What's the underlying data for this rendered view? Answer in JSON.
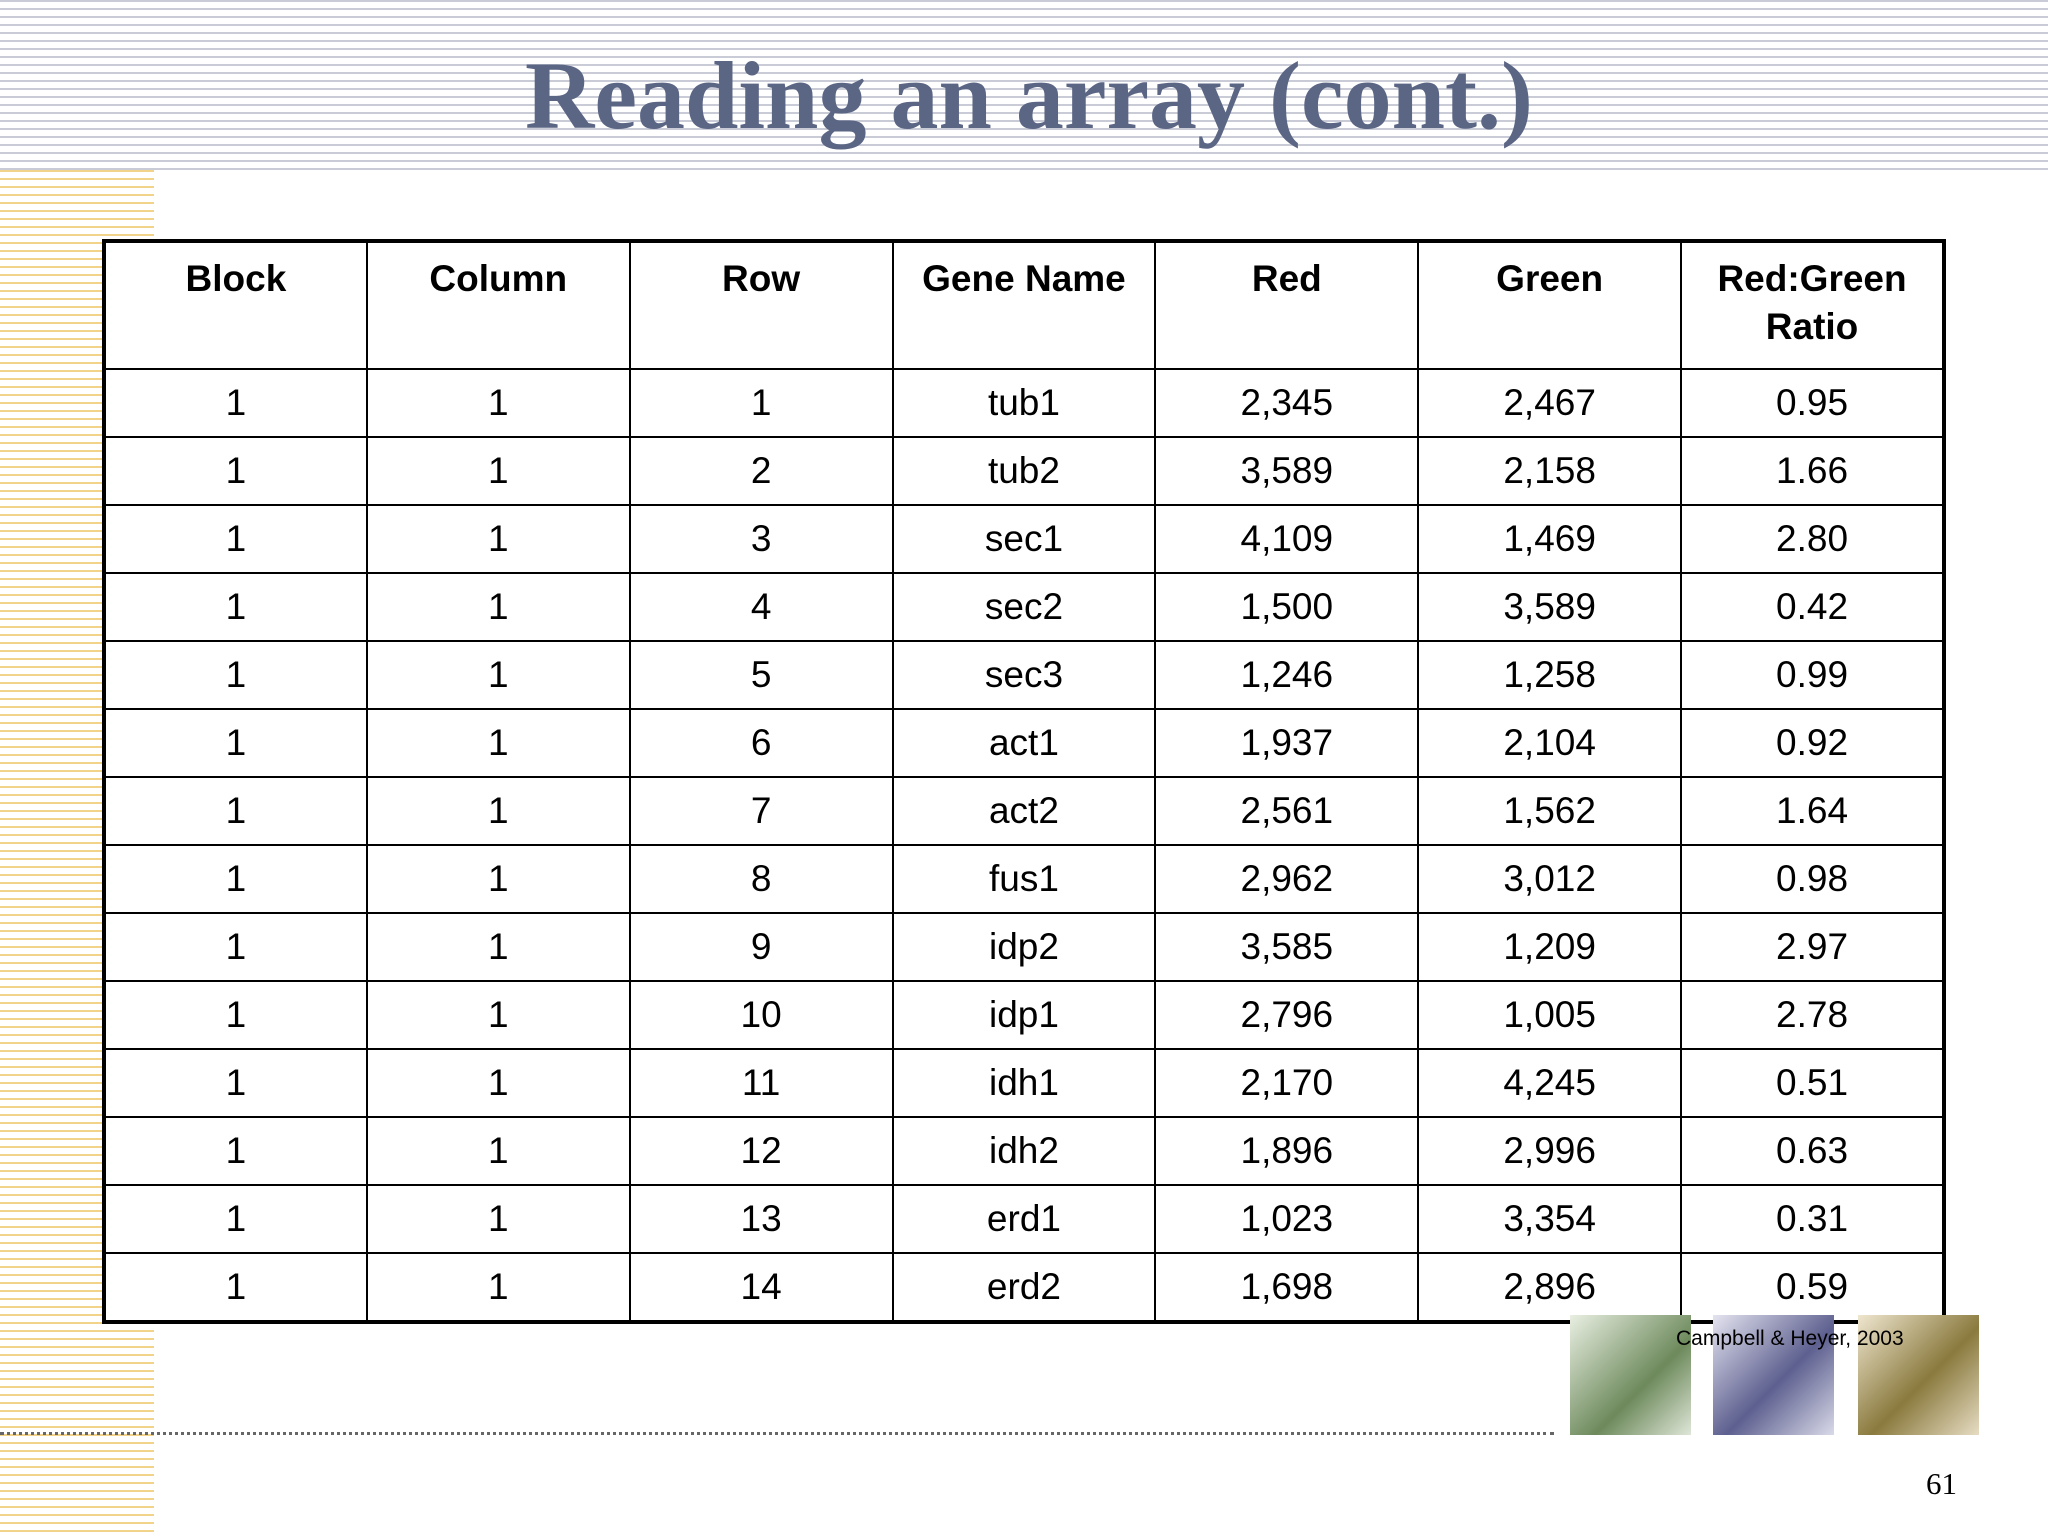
{
  "header": {
    "title": "Reading an array (cont.)"
  },
  "table": {
    "columns": [
      "Block",
      "Column",
      "Row",
      "Gene Name",
      "Red",
      "Green",
      "Red:Green Ratio"
    ],
    "rows": [
      [
        "1",
        "1",
        "1",
        "tub1",
        "2,345",
        "2,467",
        "0.95"
      ],
      [
        "1",
        "1",
        "2",
        "tub2",
        "3,589",
        "2,158",
        "1.66"
      ],
      [
        "1",
        "1",
        "3",
        "sec1",
        "4,109",
        "1,469",
        "2.80"
      ],
      [
        "1",
        "1",
        "4",
        "sec2",
        "1,500",
        "3,589",
        "0.42"
      ],
      [
        "1",
        "1",
        "5",
        "sec3",
        "1,246",
        "1,258",
        "0.99"
      ],
      [
        "1",
        "1",
        "6",
        "act1",
        "1,937",
        "2,104",
        "0.92"
      ],
      [
        "1",
        "1",
        "7",
        "act2",
        "2,561",
        "1,562",
        "1.64"
      ],
      [
        "1",
        "1",
        "8",
        "fus1",
        "2,962",
        "3,012",
        "0.98"
      ],
      [
        "1",
        "1",
        "9",
        "idp2",
        "3,585",
        "1,209",
        "2.97"
      ],
      [
        "1",
        "1",
        "10",
        "idp1",
        "2,796",
        "1,005",
        "2.78"
      ],
      [
        "1",
        "1",
        "11",
        "idh1",
        "2,170",
        "4,245",
        "0.51"
      ],
      [
        "1",
        "1",
        "12",
        "idh2",
        "1,896",
        "2,996",
        "0.63"
      ],
      [
        "1",
        "1",
        "13",
        "erd1",
        "1,023",
        "3,354",
        "0.31"
      ],
      [
        "1",
        "1",
        "14",
        "erd2",
        "1,698",
        "2,896",
        "0.59"
      ]
    ]
  },
  "footer": {
    "citation": "Campbell & Heyer, 2003",
    "page_number": "61"
  }
}
